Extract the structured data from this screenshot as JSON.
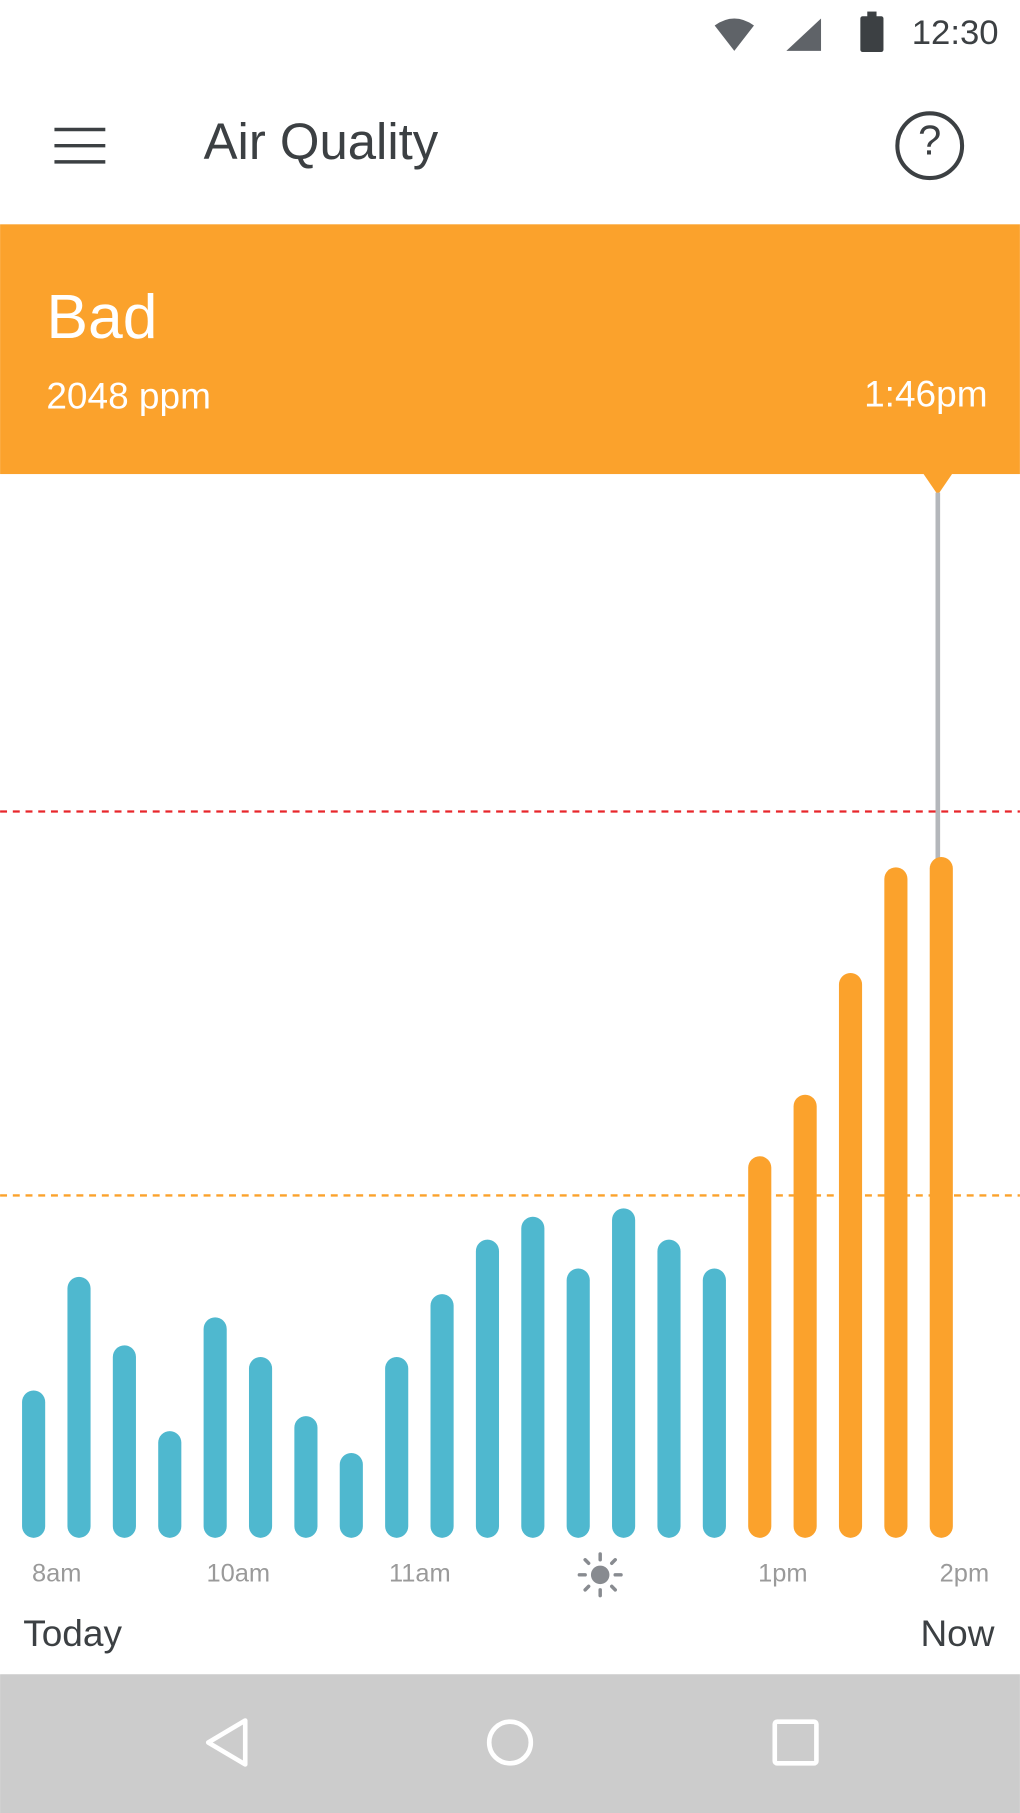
{
  "status_bar": {
    "time": "12:30"
  },
  "app_bar": {
    "title": "Air Quality"
  },
  "banner": {
    "status": "Bad",
    "reading": "2048 ppm",
    "time": "1:46pm"
  },
  "chart_data": {
    "type": "bar",
    "categories": [
      "8am",
      null,
      null,
      null,
      "10am",
      null,
      null,
      null,
      "11am",
      null,
      null,
      null,
      null,
      null,
      null,
      null,
      "1pm",
      null,
      null,
      null,
      "2pm"
    ],
    "values": [
      443,
      785,
      579,
      321,
      663,
      544,
      366,
      255,
      544,
      733,
      897,
      966,
      810,
      991,
      897,
      810,
      1148,
      1333,
      1699,
      2017,
      2048
    ],
    "colors": [
      "#4fb8cf",
      "#4fb8cf",
      "#4fb8cf",
      "#4fb8cf",
      "#4fb8cf",
      "#4fb8cf",
      "#4fb8cf",
      "#4fb8cf",
      "#4fb8cf",
      "#4fb8cf",
      "#4fb8cf",
      "#4fb8cf",
      "#4fb8cf",
      "#4fb8cf",
      "#4fb8cf",
      "#4fb8cf",
      "#fba22c",
      "#fba22c",
      "#fba22c",
      "#fba22c",
      "#fba22c"
    ],
    "ylim": [
      0,
      3200
    ],
    "reference_lines": [
      {
        "value": 2185,
        "color": "#e8262b"
      },
      {
        "value": 1030,
        "color": "#fba22c"
      }
    ]
  },
  "footer": {
    "start": "Today",
    "end": "Now"
  }
}
